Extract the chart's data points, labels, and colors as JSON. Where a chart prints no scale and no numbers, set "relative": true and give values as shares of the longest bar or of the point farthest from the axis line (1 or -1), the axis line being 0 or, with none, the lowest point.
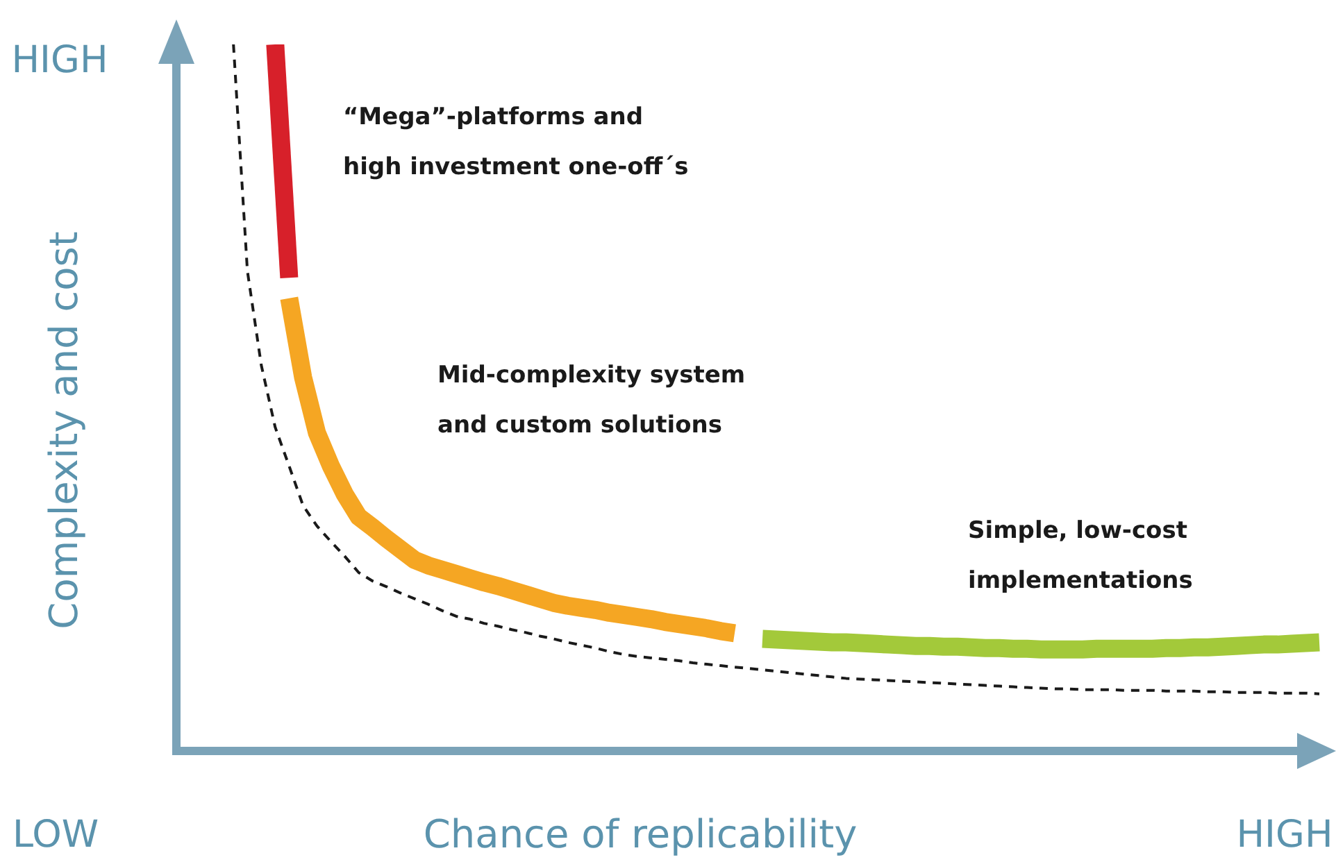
{
  "chart_data": {
    "type": "line",
    "relative": true,
    "xlabel": "Chance of replicability",
    "ylabel": "Complexity and cost",
    "marker": "none",
    "categories": [
      null,
      null,
      null,
      null,
      null,
      null,
      null,
      null,
      null,
      null,
      null,
      null,
      null,
      null,
      null,
      null,
      null,
      null,
      null,
      null,
      null,
      null,
      null,
      null,
      null,
      null,
      null,
      null,
      null,
      null,
      null,
      null,
      null,
      null,
      null,
      null,
      null,
      null,
      null,
      null,
      null,
      null,
      null,
      null,
      null,
      null,
      null,
      null,
      null,
      null,
      null,
      null,
      null,
      null,
      null,
      null,
      null,
      null,
      null,
      null,
      null,
      null,
      null,
      null,
      null,
      null,
      null,
      null,
      null,
      null,
      null,
      null,
      null,
      null,
      null,
      null,
      null,
      null,
      null,
      null,
      null,
      null,
      null
    ],
    "series": [
      {
        "color": "#d7202a",
        "line_style": "solid",
        "values": [
          null,
          null,
          null,
          null,
          null,
          null,
          null,
          1,
          0.669,
          null,
          null,
          null,
          null,
          null,
          null,
          null,
          null,
          null,
          null,
          null,
          null,
          null,
          null,
          null,
          null,
          null,
          null,
          null,
          null,
          null,
          null,
          null,
          null,
          null,
          null,
          null,
          null,
          null,
          null,
          null,
          null,
          null,
          null,
          null,
          null,
          null,
          null,
          null,
          null,
          null,
          null,
          null,
          null,
          null,
          null,
          null,
          null,
          null,
          null,
          null,
          null,
          null,
          null,
          null,
          null,
          null,
          null,
          null,
          null,
          null,
          null,
          null,
          null,
          null,
          null,
          null,
          null,
          null,
          null,
          null,
          null,
          null,
          null
        ]
      },
      {
        "color": "#f5a623",
        "line_style": "solid",
        "values": [
          null,
          null,
          null,
          null,
          null,
          null,
          null,
          null,
          0.64,
          0.528,
          0.449,
          0.402,
          0.362,
          0.33,
          0.315,
          0.299,
          0.284,
          0.269,
          0.261,
          0.255,
          0.249,
          0.243,
          0.237,
          0.232,
          0.226,
          0.22,
          0.214,
          0.208,
          0.204,
          0.201,
          0.198,
          0.194,
          0.191,
          0.188,
          0.185,
          0.181,
          0.178,
          0.175,
          0.172,
          0.168,
          0.165,
          null,
          null,
          null,
          null,
          null,
          null,
          null,
          null,
          null,
          null,
          null,
          null,
          null,
          null,
          null,
          null,
          null,
          null,
          null,
          null,
          null,
          null,
          null,
          null,
          null,
          null,
          null,
          null,
          null,
          null,
          null,
          null,
          null,
          null,
          null,
          null,
          null,
          null,
          null,
          null,
          null,
          null
        ]
      },
      {
        "color": "#a3c93a",
        "line_style": "solid",
        "values": [
          null,
          null,
          null,
          null,
          null,
          null,
          null,
          null,
          null,
          null,
          null,
          null,
          null,
          null,
          null,
          null,
          null,
          null,
          null,
          null,
          null,
          null,
          null,
          null,
          null,
          null,
          null,
          null,
          null,
          null,
          null,
          null,
          null,
          null,
          null,
          null,
          null,
          null,
          null,
          null,
          null,
          null,
          0.157,
          0.156,
          0.155,
          0.154,
          0.153,
          0.152,
          0.152,
          0.151,
          0.15,
          0.149,
          0.148,
          0.147,
          0.147,
          0.146,
          0.146,
          0.145,
          0.144,
          0.144,
          0.143,
          0.143,
          0.142,
          0.142,
          0.142,
          0.142,
          0.143,
          0.143,
          0.143,
          0.143,
          0.143,
          0.144,
          0.144,
          0.145,
          0.145,
          0.146,
          0.147,
          0.148,
          0.149,
          0.149,
          0.15,
          0.151,
          0.152
        ]
      },
      {
        "color": "#1a1a1a",
        "line_style": "dashed",
        "values": [
          null,
          null,
          null,
          null,
          1,
          0.679,
          0.545,
          0.457,
          0.402,
          0.346,
          0.317,
          0.295,
          0.274,
          0.251,
          0.239,
          0.231,
          0.222,
          0.214,
          0.206,
          0.197,
          0.189,
          0.185,
          0.179,
          0.175,
          0.17,
          0.166,
          0.161,
          0.157,
          0.152,
          0.148,
          0.144,
          0.139,
          0.135,
          0.132,
          0.13,
          0.128,
          0.126,
          0.123,
          0.121,
          0.119,
          0.117,
          0.115,
          0.113,
          0.111,
          0.109,
          0.107,
          0.105,
          0.103,
          0.101,
          0.1,
          0.099,
          0.098,
          0.097,
          0.096,
          0.095,
          0.094,
          0.093,
          0.092,
          0.091,
          0.09,
          0.089,
          0.088,
          0.087,
          0.086,
          0.086,
          0.085,
          0.085,
          0.085,
          0.084,
          0.084,
          0.084,
          0.083,
          0.083,
          0.083,
          0.082,
          0.082,
          0.081,
          0.081,
          0.081,
          0.08,
          0.08,
          0.08,
          0.079
        ]
      }
    ],
    "annotations": [
      "HIGH",
      "LOW",
      "HIGH",
      "“Mega”-platforms and high investment one-off´s",
      "Mid-complexity system and custom solutions",
      "Simple, low-cost implementations"
    ]
  }
}
